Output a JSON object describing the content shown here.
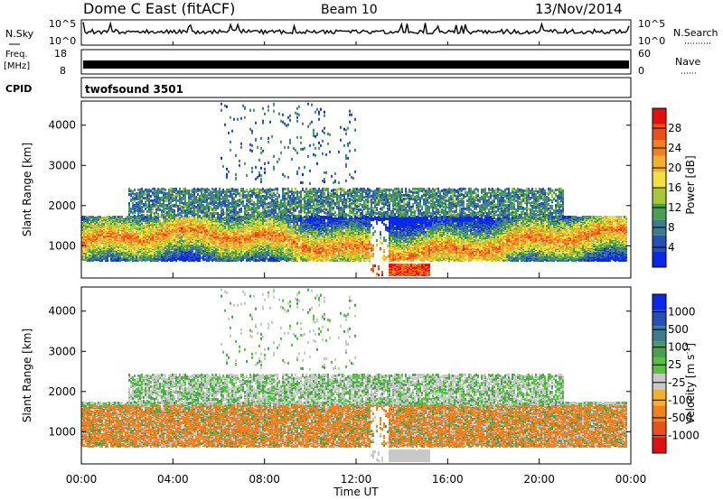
{
  "header": {
    "radar": "Dome C East (fitACF)",
    "beam": "Beam 10",
    "date": "13/Nov/2014"
  },
  "summary_panels": {
    "nsky_label": "N.Sky",
    "nsky_ticks": [
      "10^5",
      "10^0"
    ],
    "nsearch_label": "N.Search",
    "freq_label": "Freq.",
    "freq_unit": "[MHz]",
    "freq_ticks": [
      "18",
      "8"
    ],
    "nave_label": "Nave",
    "nave_ticks": [
      "60",
      "0"
    ],
    "cpid_label": "CPID",
    "cpid_value": "twofsound 3501"
  },
  "chart_data": [
    {
      "type": "heatmap",
      "title": "",
      "xlabel": "",
      "ylabel": "Slant Range [km]",
      "xlim": [
        0,
        24
      ],
      "ylim": [
        200,
        4600
      ],
      "y_ticks": [
        1000,
        2000,
        3000,
        4000
      ],
      "colorbar": {
        "label": "Power [dB]",
        "ticks": [
          4,
          8,
          12,
          16,
          20,
          24,
          28
        ],
        "range": [
          0,
          32
        ],
        "colors": [
          "#0a28e8",
          "#2a4fb4",
          "#3c7c8e",
          "#48a050",
          "#a8c83a",
          "#f0e040",
          "#f2b030",
          "#f08020",
          "#ec5018",
          "#e01010"
        ]
      },
      "features": [
        {
          "name": "main-band",
          "x": [
            0,
            23.8
          ],
          "y": [
            750,
            1500
          ],
          "level": "high"
        },
        {
          "name": "upper-scatter",
          "x": [
            2,
            21
          ],
          "y": [
            1700,
            2400
          ],
          "level": "low"
        },
        {
          "name": "near-range-echo",
          "x": [
            12.6,
            15.2
          ],
          "y": [
            220,
            500
          ],
          "level": "high"
        }
      ]
    },
    {
      "type": "heatmap",
      "title": "",
      "xlabel": "Time UT",
      "ylabel": "Slant Range [km]",
      "xlim": [
        0,
        24
      ],
      "ylim": [
        200,
        4600
      ],
      "x_ticks": [
        "00:00",
        "04:00",
        "08:00",
        "12:00",
        "16:00",
        "20:00",
        "00:00"
      ],
      "y_ticks": [
        1000,
        2000,
        3000,
        4000
      ],
      "colorbar": {
        "label": "Velocity [m s^-1]",
        "ticks": [
          "1000",
          "500",
          "100",
          "25",
          "-25",
          "-100",
          "-500",
          "-1000"
        ],
        "range": [
          -1000,
          1000
        ],
        "colors": [
          "#e01010",
          "#ec5018",
          "#f08020",
          "#f2b030",
          "#c8c8c8",
          "#58c040",
          "#48a050",
          "#3c7c8e",
          "#2a4fb4",
          "#0a28e8"
        ]
      },
      "features": [
        {
          "name": "main-band",
          "x": [
            0,
            23.8
          ],
          "y": [
            750,
            1500
          ],
          "velocity": "negative"
        },
        {
          "name": "upper-scatter",
          "x": [
            2,
            21
          ],
          "y": [
            1700,
            2400
          ],
          "velocity": "near-zero"
        },
        {
          "name": "near-range-echo",
          "x": [
            12.6,
            15.2
          ],
          "y": [
            220,
            500
          ],
          "velocity": "near-zero"
        }
      ]
    }
  ]
}
